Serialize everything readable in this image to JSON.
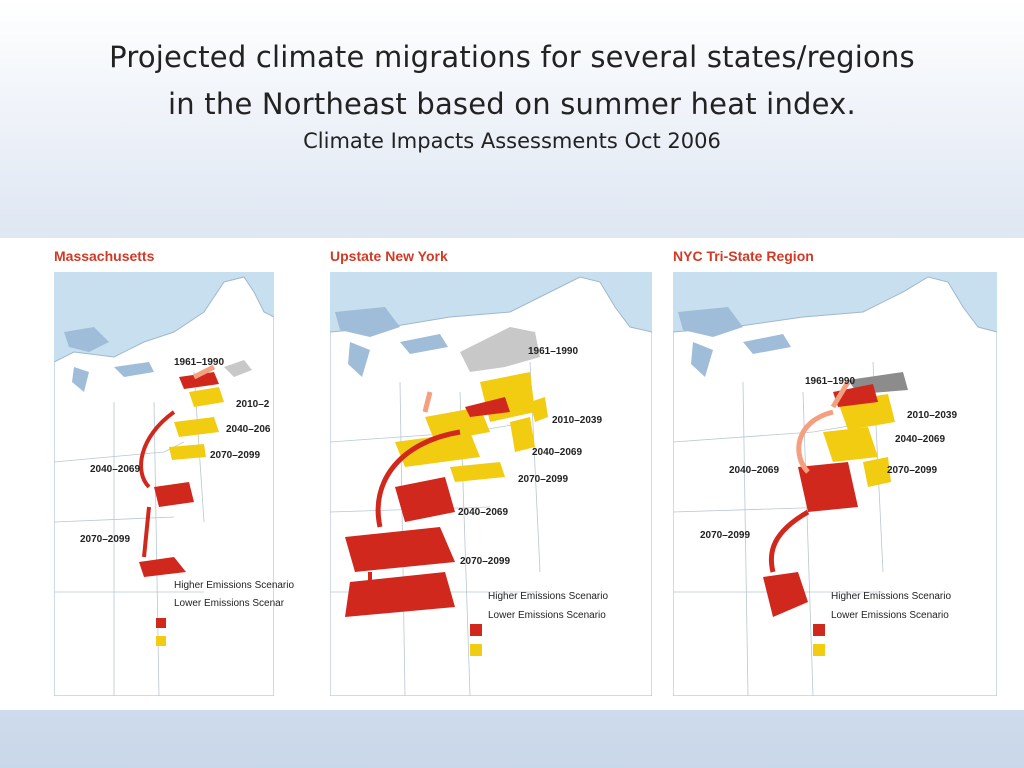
{
  "slide": {
    "title_line1": "Projected climate migrations for several states/regions",
    "title_line2": "in the Northeast based on summer heat index.",
    "subtitle": "Climate Impacts Assessments Oct 2006"
  },
  "colors": {
    "higher": "#d0281d",
    "lower": "#f2cc10",
    "baseline": "#c8c8c8",
    "water": "#c8dff0",
    "land": "#ffffff",
    "title_red": "#d23a26"
  },
  "panels": [
    {
      "title": "Massachusetts",
      "periods": [
        "1961–1990",
        "2010–2",
        "2040–206",
        "2070–2099",
        "2040–2069",
        "2070–2099"
      ],
      "legend": [
        "Higher Emissions Scenario",
        "Lower Emissions Scenar"
      ]
    },
    {
      "title": "Upstate New York",
      "periods": [
        "1961–1990",
        "2010–2039",
        "2040–2069",
        "2070–2099",
        "2040–2069",
        "2070–2099"
      ],
      "legend": [
        "Higher Emissions Scenario",
        "Lower Emissions Scenario"
      ]
    },
    {
      "title": "NYC Tri-State Region",
      "periods": [
        "1961–1990",
        "2010–2039",
        "2040–2069",
        "2070–2099",
        "2040–2069",
        "2070–2099"
      ],
      "legend": [
        "Higher Emissions Scenario",
        "Lower Emissions Scenario"
      ]
    }
  ]
}
